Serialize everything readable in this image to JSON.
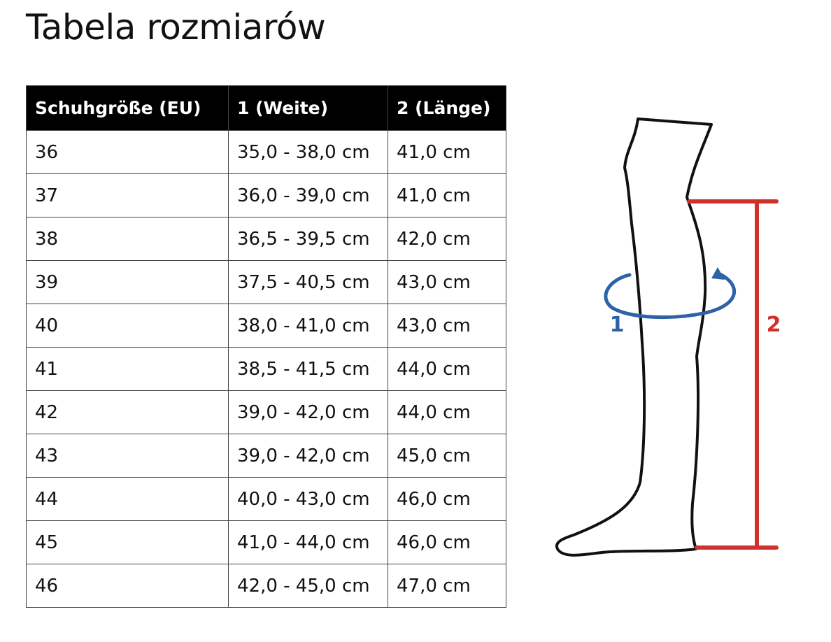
{
  "title": "Tabela rozmiarów",
  "table": {
    "header": [
      "Schuhgröße (EU)",
      "1 (Weite)",
      "2 (Länge)"
    ],
    "rows": [
      [
        "36",
        "35,0 - 38,0 cm",
        "41,0 cm"
      ],
      [
        "37",
        "36,0 - 39,0 cm",
        "41,0 cm"
      ],
      [
        "38",
        "36,5 - 39,5 cm",
        "42,0 cm"
      ],
      [
        "39",
        "37,5 - 40,5 cm",
        "43,0 cm"
      ],
      [
        "40",
        "38,0 - 41,0 cm",
        "43,0 cm"
      ],
      [
        "41",
        "38,5 - 41,5 cm",
        "44,0 cm"
      ],
      [
        "42",
        "39,0 - 42,0 cm",
        "44,0 cm"
      ],
      [
        "43",
        "39,0 - 42,0 cm",
        "45,0 cm"
      ],
      [
        "44",
        "40,0 - 43,0 cm",
        "46,0 cm"
      ],
      [
        "45",
        "41,0 - 44,0 cm",
        "46,0 cm"
      ],
      [
        "46",
        "42,0 - 45,0 cm",
        "47,0 cm"
      ]
    ]
  },
  "diagram": {
    "label_width": "1",
    "label_length": "2"
  }
}
